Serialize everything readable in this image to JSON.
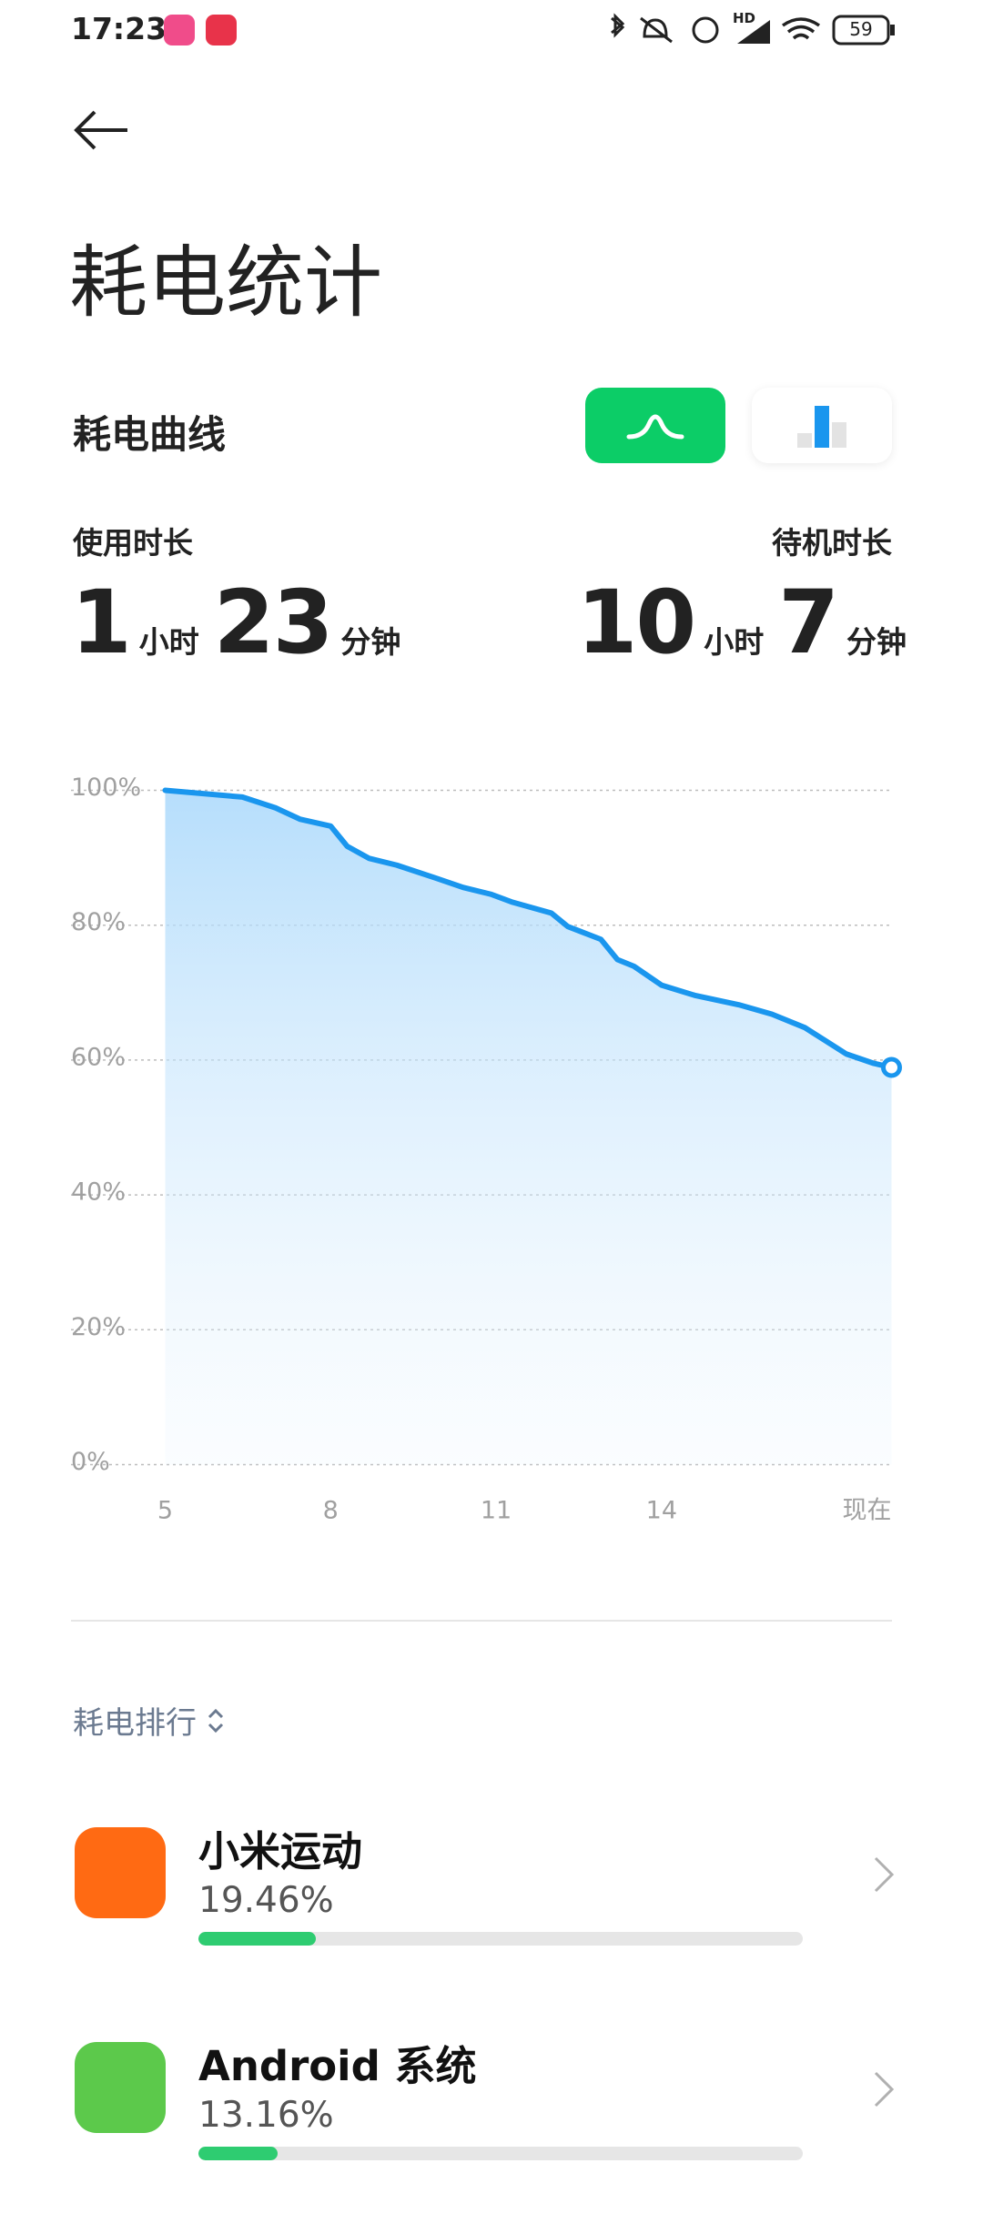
{
  "status_bar": {
    "time": "17:23",
    "network": "HD",
    "battery": "59"
  },
  "header": {
    "title": "耗电统计"
  },
  "curve": {
    "title": "耗电曲线",
    "usage": {
      "label": "使用时长",
      "hours": 1,
      "hours_unit": "小时",
      "minutes": 23,
      "minutes_unit": "分钟"
    },
    "standby": {
      "label": "待机时长",
      "hours": 10,
      "hours_unit": "小时",
      "minutes": 7,
      "minutes_unit": "分钟"
    }
  },
  "chart_data": {
    "type": "line",
    "x": [
      5,
      6.4,
      7,
      7.45,
      8,
      8.3,
      8.7,
      9.2,
      9.9,
      10.4,
      10.9,
      11.3,
      12,
      12.3,
      12.9,
      13.2,
      13.5,
      14,
      14.6,
      15.4,
      16,
      16.6,
      17.35,
      17.85,
      18.17
    ],
    "values": [
      100,
      99,
      97.4,
      95.7,
      94.7,
      91.7,
      89.9,
      88.9,
      87,
      85.6,
      84.6,
      83.4,
      81.8,
      79.8,
      77.9,
      74.9,
      73.9,
      71.1,
      69.6,
      68.2,
      66.8,
      64.8,
      60.9,
      59.5,
      58.9
    ],
    "color": "#1a96ee",
    "xlim": [
      5,
      18.17
    ],
    "xticks": [
      5,
      8,
      11,
      14,
      {
        "value": 18.17,
        "label": "现在"
      }
    ],
    "ylim": [
      0,
      100
    ],
    "yticks": [
      {
        "value": 0,
        "label": "0%"
      },
      {
        "value": 20,
        "label": "20%"
      },
      {
        "value": 40,
        "label": "40%"
      },
      {
        "value": 60,
        "label": "60%"
      },
      {
        "value": 80,
        "label": "80%"
      },
      {
        "value": 100,
        "label": "100%"
      }
    ],
    "grid": true
  },
  "ranking": {
    "title": "耗电排行",
    "apps": [
      {
        "name": "小米运动",
        "value": 19.46,
        "value_label": "19.46%"
      },
      {
        "name": "Android 系统",
        "value": 13.16,
        "value_label": "13.16%"
      }
    ]
  }
}
